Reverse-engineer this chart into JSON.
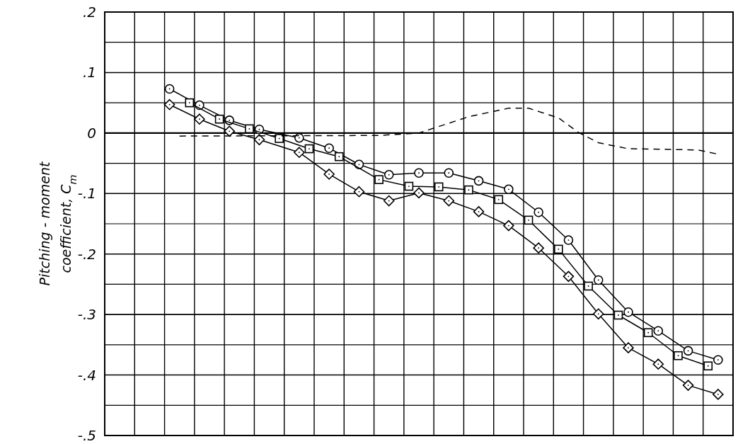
{
  "chart_data": {
    "type": "line",
    "ylabel": "Pitching - moment\ncoefficient, C$_{m}$",
    "tick_labels": "y",
    "grid": true,
    "ylim": [
      -0.5,
      0.2
    ],
    "categories": [
      null,
      null,
      null,
      null,
      null,
      null,
      null,
      null,
      null,
      null,
      null,
      null,
      null,
      null,
      null,
      null,
      null,
      null,
      null,
      null,
      null,
      null,
      null,
      null,
      null,
      null,
      null,
      null,
      null,
      null,
      null,
      null,
      null,
      null,
      null,
      null,
      null,
      null,
      null,
      null,
      null,
      null,
      null,
      null,
      null,
      null,
      null,
      null,
      null,
      null,
      null,
      null,
      null,
      null,
      null,
      null,
      null,
      null,
      null,
      null,
      null,
      null,
      null
    ],
    "yticks": [
      {
        "value": 0.2,
        "label": ".2"
      },
      {
        "value": 0.15,
        "label": null
      },
      {
        "value": 0.1,
        "label": ".1"
      },
      {
        "value": 0.05,
        "label": null
      },
      {
        "value": 0,
        "label": "0"
      },
      {
        "value": -0.05,
        "label": null
      },
      {
        "value": -0.1,
        "label": "-.1"
      },
      {
        "value": -0.15,
        "label": null
      },
      {
        "value": -0.2,
        "label": "-.2"
      },
      {
        "value": -0.25,
        "label": null
      },
      {
        "value": -0.3,
        "label": "-.3"
      },
      {
        "value": -0.35,
        "label": null
      },
      {
        "value": -0.4,
        "label": "-.4"
      },
      {
        "value": -0.45,
        "label": null
      },
      {
        "value": -0.5,
        "label": "-.5"
      }
    ],
    "series": [
      {
        "color": "#000000",
        "marker": "circle",
        "line_style": "solid",
        "values": [
          null,
          null,
          null,
          null,
          null,
          null,
          0.073,
          null,
          null,
          0.046,
          null,
          null,
          0.021,
          null,
          null,
          0.006,
          null,
          null,
          null,
          -0.008,
          null,
          null,
          -0.025,
          null,
          null,
          -0.052,
          null,
          null,
          -0.069,
          null,
          null,
          -0.066,
          null,
          null,
          -0.066,
          null,
          null,
          -0.079,
          null,
          null,
          -0.093,
          null,
          null,
          -0.131,
          null,
          null,
          -0.177,
          null,
          null,
          -0.243,
          null,
          null,
          -0.296,
          null,
          null,
          -0.327,
          null,
          null,
          -0.36,
          null,
          null,
          -0.375,
          null
        ]
      },
      {
        "color": "#000000",
        "marker": "square",
        "line_style": "solid",
        "values": [
          null,
          null,
          null,
          null,
          null,
          null,
          null,
          null,
          0.05,
          null,
          null,
          0.023,
          null,
          null,
          0.007,
          null,
          null,
          -0.009,
          null,
          null,
          -0.026,
          null,
          null,
          -0.039,
          null,
          null,
          null,
          -0.077,
          null,
          null,
          -0.088,
          null,
          null,
          -0.089,
          null,
          null,
          -0.094,
          null,
          null,
          -0.11,
          null,
          null,
          -0.144,
          null,
          null,
          -0.192,
          null,
          null,
          -0.253,
          null,
          null,
          -0.301,
          null,
          null,
          -0.33,
          null,
          null,
          -0.368,
          null,
          null,
          -0.385,
          null,
          null
        ]
      },
      {
        "color": "#000000",
        "marker": "diamond",
        "line_style": "solid",
        "values": [
          null,
          null,
          null,
          null,
          null,
          null,
          0.047,
          null,
          null,
          0.023,
          null,
          null,
          0.003,
          null,
          null,
          -0.011,
          null,
          null,
          null,
          -0.032,
          null,
          null,
          -0.068,
          null,
          null,
          -0.097,
          null,
          null,
          -0.112,
          null,
          null,
          -0.099,
          null,
          null,
          -0.112,
          null,
          null,
          -0.13,
          null,
          null,
          -0.153,
          null,
          null,
          -0.19,
          null,
          null,
          -0.237,
          null,
          null,
          -0.299,
          null,
          null,
          -0.355,
          null,
          null,
          -0.382,
          null,
          null,
          -0.417,
          null,
          null,
          -0.432,
          null
        ]
      },
      {
        "color": "#000000",
        "marker": "none",
        "line_style": "dashed",
        "values": [
          null,
          null,
          null,
          null,
          null,
          null,
          null,
          -0.005,
          null,
          null,
          null,
          null,
          null,
          null,
          null,
          null,
          null,
          null,
          null,
          null,
          null,
          null,
          null,
          null,
          null,
          null,
          null,
          -0.004,
          null,
          null,
          null,
          0.0,
          null,
          null,
          null,
          null,
          0.027,
          null,
          null,
          null,
          0.041,
          null,
          0.041,
          null,
          null,
          0.025,
          null,
          0.001,
          null,
          -0.016,
          null,
          null,
          -0.026,
          null,
          null,
          null,
          -0.027,
          null,
          null,
          -0.028,
          null,
          -0.035,
          null
        ]
      }
    ]
  }
}
